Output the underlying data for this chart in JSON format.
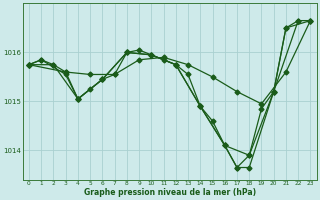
{
  "xlabel": "Graphe pression niveau de la mer (hPa)",
  "bg_color": "#ceeaea",
  "grid_color": "#aad0d0",
  "line_color": "#1a5c1a",
  "axis_color": "#3a7a3a",
  "text_color": "#1a5c1a",
  "xlim": [
    -0.5,
    23.5
  ],
  "ylim": [
    1013.4,
    1017.0
  ],
  "yticks": [
    1014,
    1015,
    1016
  ],
  "xticks": [
    0,
    1,
    2,
    3,
    4,
    5,
    6,
    7,
    8,
    9,
    10,
    11,
    12,
    13,
    14,
    15,
    16,
    17,
    18,
    19,
    20,
    21,
    22,
    23
  ],
  "series1": [
    [
      0,
      1015.75
    ],
    [
      1,
      1015.85
    ],
    [
      2,
      1015.75
    ],
    [
      3,
      1015.6
    ],
    [
      4,
      1015.05
    ],
    [
      5,
      1015.25
    ],
    [
      6,
      1015.45
    ],
    [
      7,
      1015.55
    ],
    [
      8,
      1016.0
    ],
    [
      9,
      1016.05
    ],
    [
      10,
      1015.95
    ],
    [
      11,
      1015.85
    ],
    [
      12,
      1015.75
    ],
    [
      13,
      1015.55
    ],
    [
      14,
      1014.9
    ],
    [
      15,
      1014.6
    ],
    [
      16,
      1014.1
    ],
    [
      17,
      1013.65
    ],
    [
      18,
      1013.9
    ],
    [
      19,
      1014.85
    ],
    [
      20,
      1015.2
    ],
    [
      21,
      1016.5
    ],
    [
      22,
      1016.65
    ],
    [
      23,
      1016.65
    ]
  ],
  "series2": [
    [
      0,
      1015.75
    ],
    [
      3,
      1015.6
    ],
    [
      5,
      1015.55
    ],
    [
      7,
      1015.55
    ],
    [
      9,
      1015.85
    ],
    [
      11,
      1015.9
    ],
    [
      13,
      1015.75
    ],
    [
      15,
      1015.5
    ],
    [
      17,
      1015.2
    ],
    [
      19,
      1014.95
    ],
    [
      21,
      1015.6
    ],
    [
      23,
      1016.65
    ]
  ],
  "series3": [
    [
      0,
      1015.75
    ],
    [
      2,
      1015.75
    ],
    [
      4,
      1015.05
    ],
    [
      6,
      1015.45
    ],
    [
      8,
      1016.0
    ],
    [
      10,
      1015.95
    ],
    [
      12,
      1015.75
    ],
    [
      14,
      1014.9
    ],
    [
      16,
      1014.1
    ],
    [
      18,
      1013.9
    ],
    [
      20,
      1015.2
    ],
    [
      22,
      1016.65
    ]
  ],
  "series4": [
    [
      0,
      1015.75
    ],
    [
      1,
      1015.85
    ],
    [
      3,
      1015.55
    ],
    [
      4,
      1015.05
    ],
    [
      6,
      1015.45
    ],
    [
      8,
      1016.0
    ],
    [
      10,
      1015.95
    ],
    [
      12,
      1015.75
    ],
    [
      14,
      1014.9
    ],
    [
      16,
      1014.1
    ],
    [
      17,
      1013.65
    ],
    [
      18,
      1013.65
    ],
    [
      20,
      1015.2
    ],
    [
      21,
      1016.5
    ],
    [
      23,
      1016.65
    ]
  ]
}
